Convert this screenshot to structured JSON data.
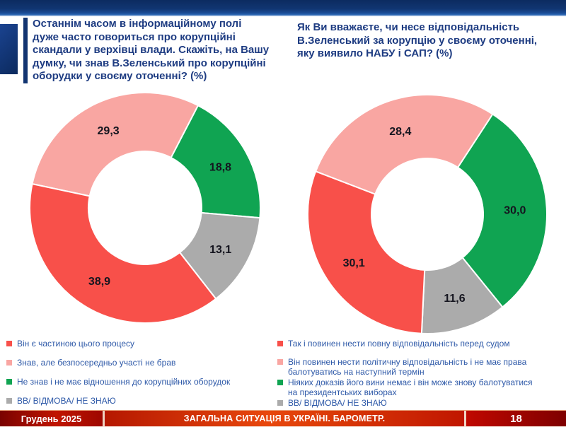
{
  "questions": {
    "left": "Останнім часом в інформаційному полі\nдуже часто говориться про корупційні\nскандали у верхівці влади. Скажіть, на Вашу\nдумку, чи знав В.Зеленський про корупційні\nоборудки у своєму оточенні? (%)",
    "right": "Як Ви вважаєте, чи несе відповідальність\nВ.Зеленський за корупцію у своєму оточенні,\nяку виявило НАБУ і САП? (%)"
  },
  "colors": {
    "red": "#F8504A",
    "pink": "#F9A6A2",
    "green": "#10A452",
    "gray": "#ABABAB",
    "question_text": "#1E3C82",
    "legend_text": "#2E59A8",
    "band_navy": "#0C2B60",
    "footer_red_bright": "#E8470D",
    "footer_red_dark": "#7E0000"
  },
  "chart_data": [
    {
      "type": "donut",
      "title": "Чи знав В.Зеленський про корупційні оборудки у своєму оточенні? (%)",
      "start_angle_deg": 282,
      "slices": [
        {
          "name": "Знав, але безпосередньо участі не брав",
          "value": 29.3,
          "label": "29,3",
          "color": "#F9A6A2"
        },
        {
          "name": "Не знав і не має відношення до корупційних оборудок",
          "value": 18.8,
          "label": "18,8",
          "color": "#10A452"
        },
        {
          "name": "ВВ/ ВІДМОВА/ НЕ ЗНАЮ",
          "value": 13.1,
          "label": "13,1",
          "color": "#ABABAB"
        },
        {
          "name": "Він є частиною цього процесу",
          "value": 38.9,
          "label": "38,9",
          "color": "#F8504A"
        }
      ],
      "legend": [
        {
          "text": "Він є частиною цього процесу",
          "color": "#F8504A"
        },
        {
          "text": "Знав, але безпосередньо участі не брав",
          "color": "#F9A6A2"
        },
        {
          "text": "Не знав і не має відношення до корупційних оборудок",
          "color": "#10A452"
        },
        {
          "text": "ВВ/ ВІДМОВА/ НЕ ЗНАЮ",
          "color": "#ABABAB"
        }
      ]
    },
    {
      "type": "donut",
      "title": "Чи несе відповідальність В.Зеленський за корупцію у своєму оточенні, яку виявило НАБУ і САП? (%)",
      "start_angle_deg": 291,
      "slices": [
        {
          "name": "Він повинен нести політичну відповідальність і не має права балотуватись на наступний термін",
          "value": 28.4,
          "label": "28,4",
          "color": "#F9A6A2"
        },
        {
          "name": "Ніяких доказів його вини немає і він може знову балотуватися на президентських виборах",
          "value": 30.0,
          "label": "30,0",
          "color": "#10A452"
        },
        {
          "name": "ВВ/ ВІДМОВА/ НЕ ЗНАЮ",
          "value": 11.6,
          "label": "11,6",
          "color": "#ABABAB"
        },
        {
          "name": "Так і повинен нести повну відповідальність перед судом",
          "value": 30.1,
          "label": "30,1",
          "color": "#F8504A"
        }
      ],
      "legend": [
        {
          "text": "Так і повинен нести повну відповідальність перед судом",
          "color": "#F8504A"
        },
        {
          "text": "Він повинен нести політичну відповідальність і не має права\nбалотуватись на наступний термін",
          "color": "#F9A6A2"
        },
        {
          "text": "Ніяких доказів його вини немає і він може знову балотуватися\nна президентських виборах",
          "color": "#10A452"
        },
        {
          "text": "ВВ/ ВІДМОВА/ НЕ ЗНАЮ",
          "color": "#ABABAB"
        }
      ]
    }
  ],
  "footer": {
    "date": "Грудень 2025",
    "title": "ЗАГАЛЬНА СИТУАЦІЯ В УКРАЇНІ. БАРОМЕТР.",
    "page": "18"
  }
}
